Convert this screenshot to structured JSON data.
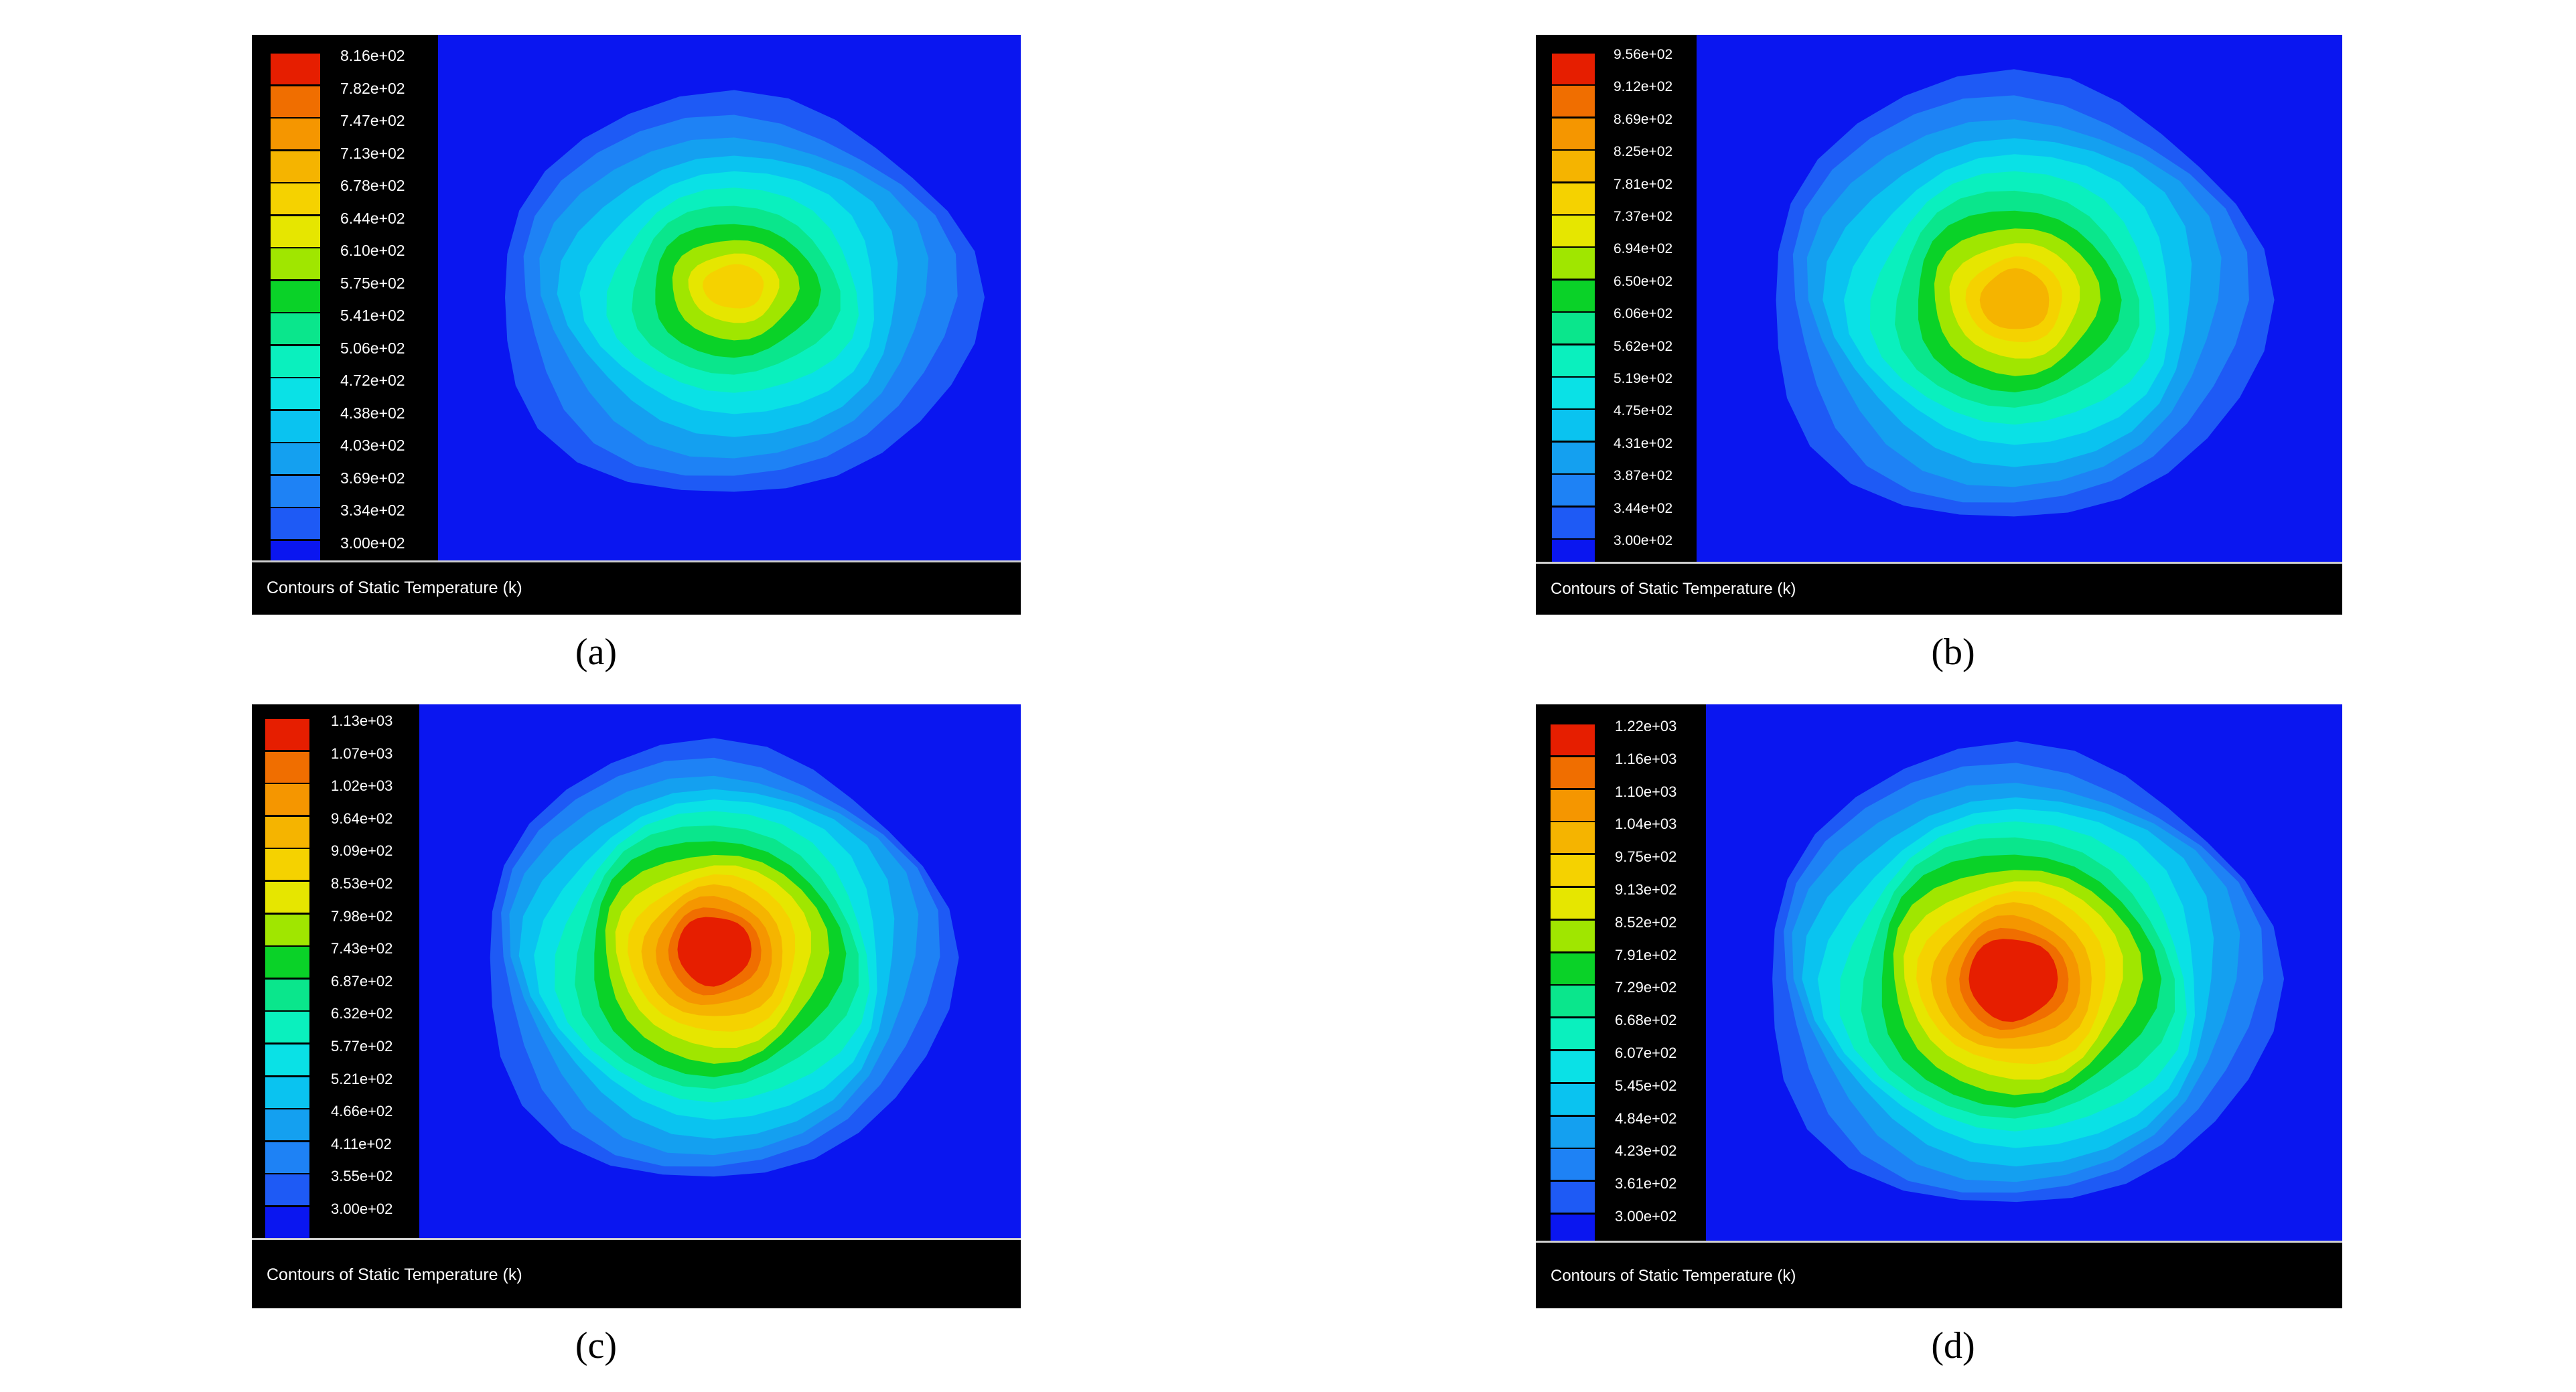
{
  "footer_title": "Contours of Static Temperature (k)",
  "colormap": [
    "#0a16f0",
    "#1e5af5",
    "#1e82f5",
    "#14a0f0",
    "#0ac3f0",
    "#0ae1e6",
    "#0af0be",
    "#0ae68c",
    "#0ad228",
    "#a0e600",
    "#e6e600",
    "#f5d200",
    "#f5b400",
    "#f59600",
    "#f06e00",
    "#e61e00"
  ],
  "plot_background": "#0a16f0",
  "panels": [
    {
      "caption": "(a)",
      "legend_ticks": [
        "8.16e+02",
        "7.82e+02",
        "7.47e+02",
        "7.13e+02",
        "6.78e+02",
        "6.44e+02",
        "6.10e+02",
        "5.75e+02",
        "5.41e+02",
        "5.06e+02",
        "4.72e+02",
        "4.38e+02",
        "4.03e+02",
        "3.69e+02",
        "3.34e+02",
        "3.00e+02"
      ],
      "max_level": 11
    },
    {
      "caption": "(b)",
      "legend_ticks": [
        "9.56e+02",
        "9.12e+02",
        "8.69e+02",
        "8.25e+02",
        "7.81e+02",
        "7.37e+02",
        "6.94e+02",
        "6.50e+02",
        "6.06e+02",
        "5.62e+02",
        "5.19e+02",
        "4.75e+02",
        "4.31e+02",
        "3.87e+02",
        "3.44e+02",
        "3.00e+02"
      ],
      "max_level": 12
    },
    {
      "caption": "(c)",
      "legend_ticks": [
        "1.13e+03",
        "1.07e+03",
        "1.02e+03",
        "9.64e+02",
        "9.09e+02",
        "8.53e+02",
        "7.98e+02",
        "7.43e+02",
        "6.87e+02",
        "6.32e+02",
        "5.77e+02",
        "5.21e+02",
        "4.66e+02",
        "4.11e+02",
        "3.55e+02",
        "3.00e+02"
      ],
      "max_level": 15
    },
    {
      "caption": "(d)",
      "legend_ticks": [
        "1.22e+03",
        "1.16e+03",
        "1.10e+03",
        "1.04e+03",
        "9.75e+02",
        "9.13e+02",
        "8.52e+02",
        "7.91e+02",
        "7.29e+02",
        "6.68e+02",
        "6.07e+02",
        "5.45e+02",
        "4.84e+02",
        "4.23e+02",
        "3.61e+02",
        "3.00e+02"
      ],
      "max_level": 15
    }
  ]
}
